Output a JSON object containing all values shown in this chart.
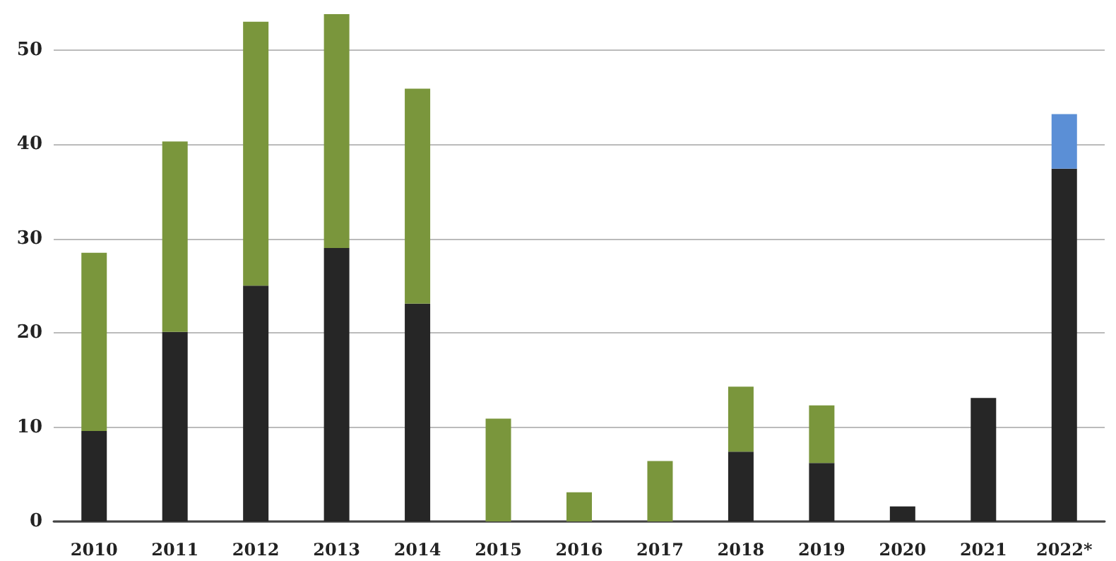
{
  "chart_data": {
    "type": "bar",
    "stacked": true,
    "categories": [
      "2010",
      "2011",
      "2012",
      "2013",
      "2014",
      "2015",
      "2016",
      "2017",
      "2018",
      "2019",
      "2020",
      "2021",
      "2022*"
    ],
    "series": [
      {
        "color": "#262626",
        "values": [
          9.6,
          20.1,
          25.0,
          29.0,
          23.1,
          0,
          0,
          0,
          7.4,
          6.2,
          1.6,
          13.1,
          37.4
        ]
      },
      {
        "color": "#7a963c",
        "values": [
          18.9,
          20.2,
          28.0,
          24.8,
          22.8,
          10.9,
          3.1,
          6.4,
          6.9,
          6.1,
          0,
          0,
          0
        ]
      },
      {
        "color": "#5b8fd6",
        "values": [
          0,
          0,
          0,
          0,
          0,
          0,
          0,
          0,
          0,
          0,
          0,
          0,
          5.8
        ]
      }
    ],
    "ylim": [
      0,
      53.8
    ],
    "yticks": [
      0,
      10,
      20,
      30,
      40,
      50
    ],
    "grid": "y"
  }
}
